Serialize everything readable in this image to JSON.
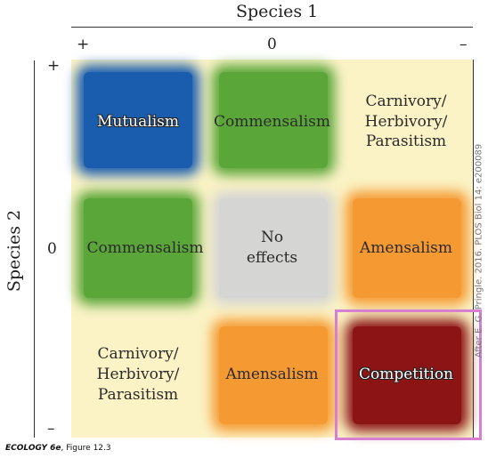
{
  "axes": {
    "top_title": "Species 1",
    "top_ticks": [
      "+",
      "0",
      "–"
    ],
    "left_title": "Species 2",
    "left_ticks": [
      "+",
      "0",
      "–"
    ]
  },
  "cells": {
    "r0c0": "Mutualism",
    "r0c1": "Commensalism",
    "r0c2": "Carnivory/\nHerbivory/\nParasitism",
    "r1c0": "Commensalism",
    "r1c1": "No\neffects",
    "r1c2": "Amensalism",
    "r2c0": "Carnivory/\nHerbivory/\nParasitism",
    "r2c1": "Amensalism",
    "r2c2": "Competition"
  },
  "credit": "After E. G. Pringle. 2016. PLOS Biol 14: e200089",
  "footer": {
    "book": "ECOLOGY 6e",
    "figure": ", Figure 12.3"
  },
  "colors": {
    "mutualism": "#1a5dae",
    "commensalism": "#5aa639",
    "no_effects": "#d5d5d3",
    "amensalism": "#f59a33",
    "competition": "#8c1414",
    "carnivory": "#fdf4c4",
    "highlight": "#d77fd2"
  }
}
